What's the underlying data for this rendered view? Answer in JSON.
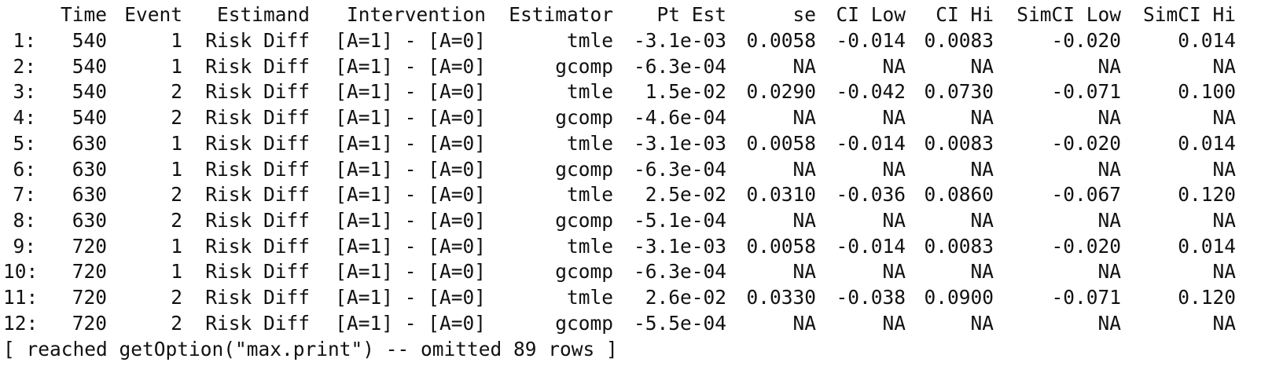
{
  "header": {
    "time": "Time",
    "event": "Event",
    "estimand": "Estimand",
    "intervention": "Intervention",
    "estimator": "Estimator",
    "pt_est": "Pt Est",
    "se": "se",
    "ci_low": "CI Low",
    "ci_hi": "CI Hi",
    "simci_low": "SimCI Low",
    "simci_hi": "SimCI Hi"
  },
  "rows": [
    {
      "idx": "1:",
      "time": "540",
      "event": "1",
      "estimand": "Risk Diff",
      "intervention": "[A=1] - [A=0]",
      "estimator": "tmle",
      "pt_est": "-3.1e-03",
      "se": "0.0058",
      "ci_low": "-0.014",
      "ci_hi": "0.0083",
      "simci_low": "-0.020",
      "simci_hi": "0.014"
    },
    {
      "idx": "2:",
      "time": "540",
      "event": "1",
      "estimand": "Risk Diff",
      "intervention": "[A=1] - [A=0]",
      "estimator": "gcomp",
      "pt_est": "-6.3e-04",
      "se": "NA",
      "ci_low": "NA",
      "ci_hi": "NA",
      "simci_low": "NA",
      "simci_hi": "NA"
    },
    {
      "idx": "3:",
      "time": "540",
      "event": "2",
      "estimand": "Risk Diff",
      "intervention": "[A=1] - [A=0]",
      "estimator": "tmle",
      "pt_est": "1.5e-02",
      "se": "0.0290",
      "ci_low": "-0.042",
      "ci_hi": "0.0730",
      "simci_low": "-0.071",
      "simci_hi": "0.100"
    },
    {
      "idx": "4:",
      "time": "540",
      "event": "2",
      "estimand": "Risk Diff",
      "intervention": "[A=1] - [A=0]",
      "estimator": "gcomp",
      "pt_est": "-4.6e-04",
      "se": "NA",
      "ci_low": "NA",
      "ci_hi": "NA",
      "simci_low": "NA",
      "simci_hi": "NA"
    },
    {
      "idx": "5:",
      "time": "630",
      "event": "1",
      "estimand": "Risk Diff",
      "intervention": "[A=1] - [A=0]",
      "estimator": "tmle",
      "pt_est": "-3.1e-03",
      "se": "0.0058",
      "ci_low": "-0.014",
      "ci_hi": "0.0083",
      "simci_low": "-0.020",
      "simci_hi": "0.014"
    },
    {
      "idx": "6:",
      "time": "630",
      "event": "1",
      "estimand": "Risk Diff",
      "intervention": "[A=1] - [A=0]",
      "estimator": "gcomp",
      "pt_est": "-6.3e-04",
      "se": "NA",
      "ci_low": "NA",
      "ci_hi": "NA",
      "simci_low": "NA",
      "simci_hi": "NA"
    },
    {
      "idx": "7:",
      "time": "630",
      "event": "2",
      "estimand": "Risk Diff",
      "intervention": "[A=1] - [A=0]",
      "estimator": "tmle",
      "pt_est": "2.5e-02",
      "se": "0.0310",
      "ci_low": "-0.036",
      "ci_hi": "0.0860",
      "simci_low": "-0.067",
      "simci_hi": "0.120"
    },
    {
      "idx": "8:",
      "time": "630",
      "event": "2",
      "estimand": "Risk Diff",
      "intervention": "[A=1] - [A=0]",
      "estimator": "gcomp",
      "pt_est": "-5.1e-04",
      "se": "NA",
      "ci_low": "NA",
      "ci_hi": "NA",
      "simci_low": "NA",
      "simci_hi": "NA"
    },
    {
      "idx": "9:",
      "time": "720",
      "event": "1",
      "estimand": "Risk Diff",
      "intervention": "[A=1] - [A=0]",
      "estimator": "tmle",
      "pt_est": "-3.1e-03",
      "se": "0.0058",
      "ci_low": "-0.014",
      "ci_hi": "0.0083",
      "simci_low": "-0.020",
      "simci_hi": "0.014"
    },
    {
      "idx": "10:",
      "time": "720",
      "event": "1",
      "estimand": "Risk Diff",
      "intervention": "[A=1] - [A=0]",
      "estimator": "gcomp",
      "pt_est": "-6.3e-04",
      "se": "NA",
      "ci_low": "NA",
      "ci_hi": "NA",
      "simci_low": "NA",
      "simci_hi": "NA"
    },
    {
      "idx": "11:",
      "time": "720",
      "event": "2",
      "estimand": "Risk Diff",
      "intervention": "[A=1] - [A=0]",
      "estimator": "tmle",
      "pt_est": "2.6e-02",
      "se": "0.0330",
      "ci_low": "-0.038",
      "ci_hi": "0.0900",
      "simci_low": "-0.071",
      "simci_hi": "0.120"
    },
    {
      "idx": "12:",
      "time": "720",
      "event": "2",
      "estimand": "Risk Diff",
      "intervention": "[A=1] - [A=0]",
      "estimator": "gcomp",
      "pt_est": "-5.5e-04",
      "se": "NA",
      "ci_low": "NA",
      "ci_hi": "NA",
      "simci_low": "NA",
      "simci_hi": "NA"
    }
  ],
  "footer": "[ reached getOption(\"max.print\") -- omitted 89 rows ]"
}
